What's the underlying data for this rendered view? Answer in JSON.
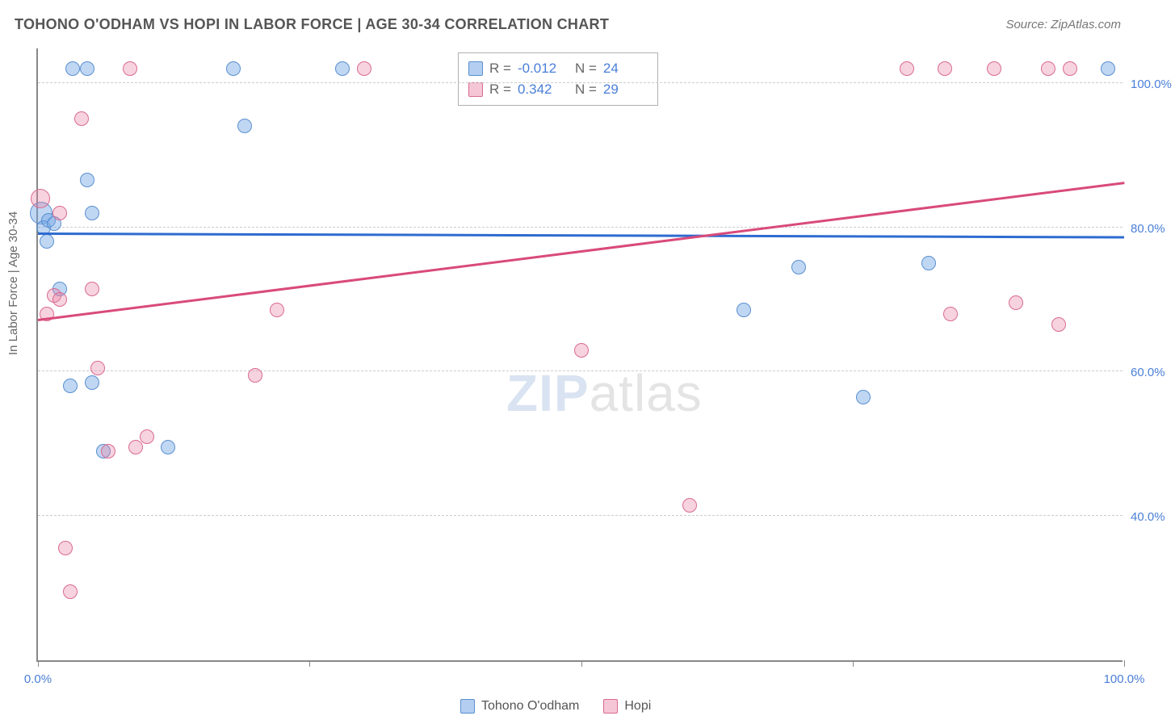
{
  "title": "TOHONO O'ODHAM VS HOPI IN LABOR FORCE | AGE 30-34 CORRELATION CHART",
  "source": "Source: ZipAtlas.com",
  "ylabel": "In Labor Force | Age 30-34",
  "watermark_a": "ZIP",
  "watermark_b": "atlas",
  "chart": {
    "type": "scatter",
    "xlim": [
      0,
      100
    ],
    "ylim": [
      20,
      105
    ],
    "yticks": [
      {
        "v": 40.0,
        "label": "40.0%"
      },
      {
        "v": 60.0,
        "label": "60.0%"
      },
      {
        "v": 80.0,
        "label": "80.0%"
      },
      {
        "v": 100.0,
        "label": "100.0%"
      }
    ],
    "xticks": [
      {
        "v": 0.0,
        "label": "0.0%"
      },
      {
        "v": 25.0,
        "label": ""
      },
      {
        "v": 50.0,
        "label": ""
      },
      {
        "v": 75.0,
        "label": ""
      },
      {
        "v": 100.0,
        "label": "100.0%"
      }
    ],
    "series": [
      {
        "name": "Tohono O'odham",
        "color_fill": "rgba(116,166,228,0.45)",
        "color_stroke": "#5a8fd0",
        "R": "-0.012",
        "N": "24",
        "trend": {
          "y_at_x0": 79.0,
          "y_at_x100": 78.5
        },
        "points": [
          {
            "x": 0.3,
            "y": 82.0,
            "r": 14
          },
          {
            "x": 0.5,
            "y": 80.0,
            "r": 9
          },
          {
            "x": 0.8,
            "y": 78.0,
            "r": 9
          },
          {
            "x": 1.0,
            "y": 81.0,
            "r": 9
          },
          {
            "x": 1.5,
            "y": 80.5,
            "r": 9
          },
          {
            "x": 2.0,
            "y": 71.5,
            "r": 9
          },
          {
            "x": 3.0,
            "y": 58.0,
            "r": 9
          },
          {
            "x": 3.2,
            "y": 102.0,
            "r": 9
          },
          {
            "x": 4.5,
            "y": 102.0,
            "r": 9
          },
          {
            "x": 4.5,
            "y": 86.5,
            "r": 9
          },
          {
            "x": 5.0,
            "y": 82.0,
            "r": 9
          },
          {
            "x": 5.0,
            "y": 58.5,
            "r": 9
          },
          {
            "x": 6.0,
            "y": 49.0,
            "r": 9
          },
          {
            "x": 12.0,
            "y": 49.5,
            "r": 9
          },
          {
            "x": 18.0,
            "y": 102.0,
            "r": 9
          },
          {
            "x": 19.0,
            "y": 94.0,
            "r": 9
          },
          {
            "x": 28.0,
            "y": 102.0,
            "r": 9
          },
          {
            "x": 65.0,
            "y": 68.5,
            "r": 9
          },
          {
            "x": 70.0,
            "y": 74.5,
            "r": 9
          },
          {
            "x": 76.0,
            "y": 56.5,
            "r": 9
          },
          {
            "x": 82.0,
            "y": 75.0,
            "r": 9
          },
          {
            "x": 98.5,
            "y": 102.0,
            "r": 9
          }
        ]
      },
      {
        "name": "Hopi",
        "color_fill": "rgba(233,128,164,0.35)",
        "color_stroke": "#d96a92",
        "R": "0.342",
        "N": "29",
        "trend": {
          "y_at_x0": 67.0,
          "y_at_x100": 86.0
        },
        "points": [
          {
            "x": 0.2,
            "y": 84.0,
            "r": 12
          },
          {
            "x": 0.8,
            "y": 68.0,
            "r": 9
          },
          {
            "x": 1.5,
            "y": 70.5,
            "r": 9
          },
          {
            "x": 2.0,
            "y": 70.0,
            "r": 9
          },
          {
            "x": 2.0,
            "y": 82.0,
            "r": 9
          },
          {
            "x": 2.5,
            "y": 35.5,
            "r": 9
          },
          {
            "x": 3.0,
            "y": 29.5,
            "r": 9
          },
          {
            "x": 4.0,
            "y": 95.0,
            "r": 9
          },
          {
            "x": 5.0,
            "y": 71.5,
            "r": 9
          },
          {
            "x": 5.5,
            "y": 60.5,
            "r": 9
          },
          {
            "x": 6.5,
            "y": 49.0,
            "r": 9
          },
          {
            "x": 8.5,
            "y": 102.0,
            "r": 9
          },
          {
            "x": 9.0,
            "y": 49.5,
            "r": 9
          },
          {
            "x": 10.0,
            "y": 51.0,
            "r": 9
          },
          {
            "x": 20.0,
            "y": 59.5,
            "r": 9
          },
          {
            "x": 22.0,
            "y": 68.5,
            "r": 9
          },
          {
            "x": 30.0,
            "y": 102.0,
            "r": 9
          },
          {
            "x": 50.0,
            "y": 63.0,
            "r": 9
          },
          {
            "x": 60.0,
            "y": 41.5,
            "r": 9
          },
          {
            "x": 80.0,
            "y": 102.0,
            "r": 9
          },
          {
            "x": 83.5,
            "y": 102.0,
            "r": 9
          },
          {
            "x": 84.0,
            "y": 68.0,
            "r": 9
          },
          {
            "x": 88.0,
            "y": 102.0,
            "r": 9
          },
          {
            "x": 90.0,
            "y": 69.5,
            "r": 9
          },
          {
            "x": 93.0,
            "y": 102.0,
            "r": 9
          },
          {
            "x": 94.0,
            "y": 66.5,
            "r": 9
          },
          {
            "x": 95.0,
            "y": 102.0,
            "r": 9
          }
        ]
      }
    ]
  }
}
